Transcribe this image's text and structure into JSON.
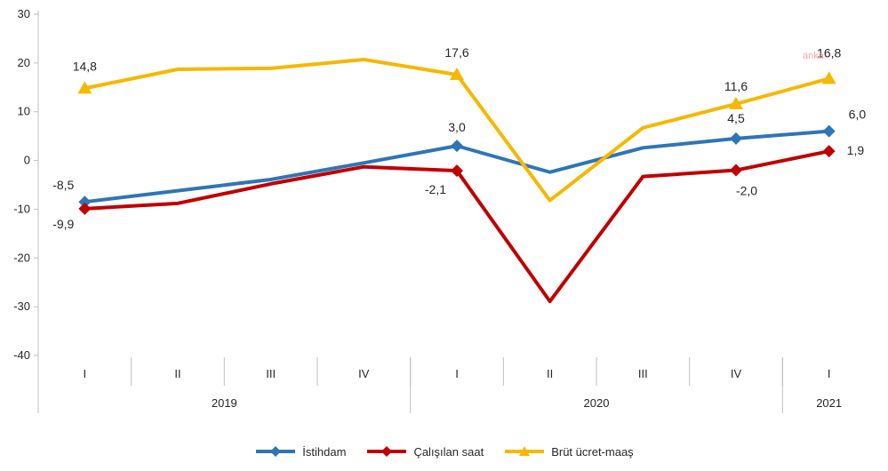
{
  "chart_data": {
    "type": "line",
    "categories": [
      "I",
      "II",
      "III",
      "IV",
      "I",
      "II",
      "III",
      "IV",
      "I"
    ],
    "year_groups": [
      {
        "label": "2019",
        "span": 4
      },
      {
        "label": "2020",
        "span": 4
      },
      {
        "label": "2021",
        "span": 1
      }
    ],
    "ylim": [
      -40,
      30
    ],
    "yticks": [
      "30",
      "20",
      "10",
      "0",
      "-10",
      "-20",
      "-30",
      "-40"
    ],
    "grid": false,
    "legend_position": "bottom",
    "series": [
      {
        "name": "İstihdam",
        "color": "#2e75b6",
        "marker": "diamond",
        "values": [
          -8.5,
          -6.2,
          -3.9,
          -0.5,
          3.0,
          -2.4,
          2.6,
          4.5,
          6.0
        ],
        "labels": [
          "-8,5",
          "",
          "",
          "",
          "3,0",
          "",
          "",
          "4,5",
          "6,0"
        ]
      },
      {
        "name": "Çalışılan saat",
        "color": "#c00000",
        "marker": "diamond",
        "values": [
          -9.9,
          -8.8,
          -4.8,
          -1.3,
          -2.1,
          -28.9,
          -3.3,
          -2.0,
          1.9
        ],
        "labels": [
          "-9,9",
          "",
          "",
          "",
          "-2,1",
          "",
          "",
          "-2,0",
          "1,9"
        ]
      },
      {
        "name": "Brüt ücret-maaş",
        "color": "#f5b800",
        "marker": "triangle",
        "values": [
          14.8,
          18.7,
          18.9,
          20.7,
          17.6,
          -8.2,
          6.7,
          11.6,
          16.8
        ],
        "labels": [
          "14,8",
          "",
          "",
          "",
          "17,6",
          "",
          "",
          "11,6",
          "16,8"
        ]
      }
    ],
    "watermark": "anka"
  }
}
